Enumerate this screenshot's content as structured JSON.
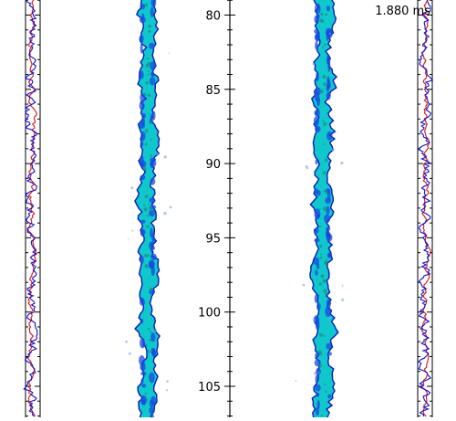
{
  "timestamp": "1.880 ms",
  "axis": {
    "ticks": [
      "80",
      "85",
      "90",
      "95",
      "100",
      "105"
    ]
  },
  "colors": {
    "trace_primary": "#1010cc",
    "trace_secondary": "#dd1010",
    "jet_fill": "#10c8cc",
    "jet_dense": "#1848e0",
    "jet_edge": "#0a1ab8",
    "axis": "#000000"
  }
}
